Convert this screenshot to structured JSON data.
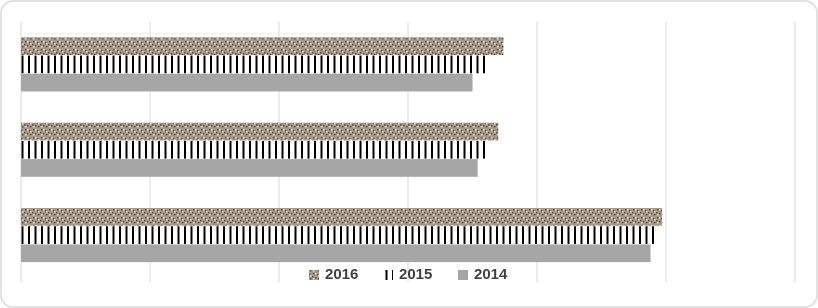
{
  "chart_data": {
    "type": "hbar",
    "categories": [
      null,
      null,
      null
    ],
    "series": [
      {
        "name": "2016",
        "color": "#a69888",
        "pattern": "dots",
        "values": [
          3.74,
          3.7,
          4.97
        ]
      },
      {
        "name": "2015",
        "color": "#000000",
        "pattern": "stripes",
        "values": [
          3.61,
          3.61,
          4.93
        ]
      },
      {
        "name": "2014",
        "color": "#a6a6a6",
        "pattern": "solid",
        "values": [
          3.5,
          3.54,
          4.88
        ]
      }
    ],
    "xlim": [
      0,
      6
    ],
    "xticks": [
      0,
      1,
      2,
      3,
      4,
      5,
      6
    ],
    "grid": true,
    "legend": "bottom"
  }
}
